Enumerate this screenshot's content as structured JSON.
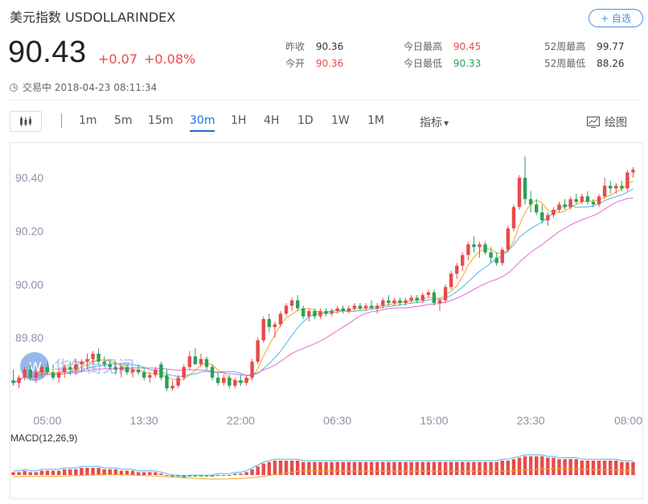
{
  "header": {
    "title": "美元指数 USDOLLARINDEX",
    "follow_label": "+ 自选",
    "price": "90.43",
    "change": "+0.07",
    "change_pct": "+0.08%",
    "status": "交易中 2018-04-23 08:11:34"
  },
  "stats": [
    {
      "label": "昨收",
      "value": "90.36",
      "color": "#333333"
    },
    {
      "label": "今开",
      "value": "90.36",
      "color": "#e84a4a"
    },
    {
      "label": "今日最高",
      "value": "90.45",
      "color": "#e84a4a"
    },
    {
      "label": "今日最低",
      "value": "90.33",
      "color": "#2aa05a"
    },
    {
      "label": "52周最高",
      "value": "99.77",
      "color": "#333333"
    },
    {
      "label": "52周最低",
      "value": "88.26",
      "color": "#333333"
    }
  ],
  "toolbar": {
    "timeframes": [
      "1m",
      "5m",
      "15m",
      "30m",
      "1H",
      "4H",
      "1D",
      "1W",
      "1M"
    ],
    "active": "30m",
    "indicator_label": "指标",
    "draw_label": "绘图"
  },
  "watermark": "华尔街见闻",
  "colors": {
    "up": "#e84a4a",
    "down": "#2aa05a",
    "ma1": "#f5a623",
    "ma2": "#4ab8e8",
    "ma3": "#e86ad0",
    "accent": "#1a73d9"
  },
  "chart_data": {
    "type": "candlestick",
    "title": "",
    "ylim": [
      89.55,
      90.5
    ],
    "yticks": [
      "90.40",
      "90.20",
      "90.00",
      "89.80"
    ],
    "ytick_values": [
      90.4,
      90.2,
      90.0,
      89.8
    ],
    "xticks": [
      "05:00",
      "13:30",
      "22:00",
      "06:30",
      "15:00",
      "23:30",
      "08:00"
    ],
    "xtick_index": [
      6,
      23,
      40,
      57,
      74,
      91,
      108
    ],
    "candles": [
      [
        89.64,
        89.68,
        89.62,
        89.63
      ],
      [
        89.63,
        89.66,
        89.61,
        89.65
      ],
      [
        89.65,
        89.69,
        89.64,
        89.68
      ],
      [
        89.68,
        89.7,
        89.64,
        89.65
      ],
      [
        89.65,
        89.68,
        89.63,
        89.67
      ],
      [
        89.67,
        89.7,
        89.65,
        89.69
      ],
      [
        89.69,
        89.71,
        89.66,
        89.67
      ],
      [
        89.67,
        89.7,
        89.64,
        89.65
      ],
      [
        89.65,
        89.69,
        89.63,
        89.67
      ],
      [
        89.67,
        89.7,
        89.65,
        89.69
      ],
      [
        89.69,
        89.71,
        89.66,
        89.68
      ],
      [
        89.68,
        89.72,
        89.66,
        89.7
      ],
      [
        89.7,
        89.72,
        89.67,
        89.71
      ],
      [
        89.71,
        89.74,
        89.68,
        89.72
      ],
      [
        89.72,
        89.75,
        89.7,
        89.74
      ],
      [
        89.74,
        89.76,
        89.7,
        89.71
      ],
      [
        89.71,
        89.73,
        89.69,
        89.7
      ],
      [
        89.7,
        89.72,
        89.68,
        89.69
      ],
      [
        89.69,
        89.71,
        89.66,
        89.68
      ],
      [
        89.68,
        89.7,
        89.65,
        89.69
      ],
      [
        89.69,
        89.7,
        89.66,
        89.67
      ],
      [
        89.67,
        89.69,
        89.65,
        89.68
      ],
      [
        89.68,
        89.7,
        89.66,
        89.67
      ],
      [
        89.67,
        89.69,
        89.64,
        89.65
      ],
      [
        89.65,
        89.67,
        89.63,
        89.66
      ],
      [
        89.66,
        89.69,
        89.65,
        89.68
      ],
      [
        89.7,
        89.71,
        89.64,
        89.65
      ],
      [
        89.66,
        89.68,
        89.6,
        89.61
      ],
      [
        89.61,
        89.64,
        89.6,
        89.62
      ],
      [
        89.62,
        89.66,
        89.61,
        89.65
      ],
      [
        89.65,
        89.7,
        89.64,
        89.69
      ],
      [
        89.69,
        89.75,
        89.68,
        89.73
      ],
      [
        89.73,
        89.76,
        89.7,
        89.7
      ],
      [
        89.7,
        89.74,
        89.69,
        89.72
      ],
      [
        89.72,
        89.73,
        89.68,
        89.69
      ],
      [
        89.69,
        89.7,
        89.64,
        89.65
      ],
      [
        89.65,
        89.67,
        89.62,
        89.63
      ],
      [
        89.63,
        89.66,
        89.62,
        89.65
      ],
      [
        89.65,
        89.66,
        89.61,
        89.62
      ],
      [
        89.62,
        89.65,
        89.61,
        89.64
      ],
      [
        89.64,
        89.66,
        89.62,
        89.63
      ],
      [
        89.63,
        89.66,
        89.62,
        89.65
      ],
      [
        89.65,
        89.72,
        89.64,
        89.71
      ],
      [
        89.71,
        89.8,
        89.7,
        89.79
      ],
      [
        89.79,
        89.88,
        89.78,
        89.87
      ],
      [
        89.87,
        89.89,
        89.82,
        89.84
      ],
      [
        89.84,
        89.86,
        89.8,
        89.85
      ],
      [
        89.85,
        89.9,
        89.84,
        89.89
      ],
      [
        89.89,
        89.93,
        89.88,
        89.92
      ],
      [
        89.92,
        89.95,
        89.9,
        89.94
      ],
      [
        89.94,
        89.96,
        89.9,
        89.91
      ],
      [
        89.91,
        89.92,
        89.87,
        89.88
      ],
      [
        89.88,
        89.91,
        89.86,
        89.9
      ],
      [
        89.9,
        89.91,
        89.87,
        89.88
      ],
      [
        89.88,
        89.91,
        89.87,
        89.9
      ],
      [
        89.9,
        89.91,
        89.88,
        89.89
      ],
      [
        89.89,
        89.91,
        89.88,
        89.9
      ],
      [
        89.9,
        89.92,
        89.89,
        89.91
      ],
      [
        89.91,
        89.92,
        89.89,
        89.9
      ],
      [
        89.9,
        89.92,
        89.89,
        89.91
      ],
      [
        89.91,
        89.93,
        89.9,
        89.92
      ],
      [
        89.92,
        89.93,
        89.9,
        89.91
      ],
      [
        89.91,
        89.93,
        89.9,
        89.92
      ],
      [
        89.92,
        89.94,
        89.91,
        89.91
      ],
      [
        89.91,
        89.93,
        89.89,
        89.92
      ],
      [
        89.92,
        89.95,
        89.91,
        89.94
      ],
      [
        89.94,
        89.96,
        89.92,
        89.93
      ],
      [
        89.93,
        89.95,
        89.92,
        89.94
      ],
      [
        89.94,
        89.95,
        89.92,
        89.93
      ],
      [
        89.93,
        89.95,
        89.92,
        89.94
      ],
      [
        89.94,
        89.96,
        89.93,
        89.95
      ],
      [
        89.95,
        89.96,
        89.93,
        89.94
      ],
      [
        89.94,
        89.97,
        89.93,
        89.96
      ],
      [
        89.96,
        89.98,
        89.95,
        89.97
      ],
      [
        89.97,
        89.98,
        89.92,
        89.93
      ],
      [
        89.93,
        89.95,
        89.9,
        89.94
      ],
      [
        89.94,
        90.0,
        89.93,
        89.99
      ],
      [
        89.99,
        90.05,
        89.98,
        90.04
      ],
      [
        90.04,
        90.08,
        90.02,
        90.07
      ],
      [
        90.07,
        90.12,
        90.05,
        90.11
      ],
      [
        90.11,
        90.16,
        90.09,
        90.15
      ],
      [
        90.15,
        90.18,
        90.12,
        90.14
      ],
      [
        90.14,
        90.16,
        90.1,
        90.15
      ],
      [
        90.15,
        90.16,
        90.11,
        90.12
      ],
      [
        90.12,
        90.14,
        90.08,
        90.1
      ],
      [
        90.1,
        90.12,
        90.07,
        90.08
      ],
      [
        90.08,
        90.14,
        90.07,
        90.13
      ],
      [
        90.13,
        90.22,
        90.12,
        90.21
      ],
      [
        90.21,
        90.3,
        90.2,
        90.29
      ],
      [
        90.29,
        90.41,
        90.28,
        90.4
      ],
      [
        90.4,
        90.48,
        90.3,
        90.32
      ],
      [
        90.32,
        90.35,
        90.27,
        90.3
      ],
      [
        90.3,
        90.32,
        90.26,
        90.27
      ],
      [
        90.27,
        90.3,
        90.23,
        90.24
      ],
      [
        90.24,
        90.27,
        90.22,
        90.26
      ],
      [
        90.26,
        90.29,
        90.25,
        90.28
      ],
      [
        90.28,
        90.31,
        90.27,
        90.3
      ],
      [
        90.3,
        90.32,
        90.28,
        90.29
      ],
      [
        90.29,
        90.33,
        90.28,
        90.32
      ],
      [
        90.32,
        90.34,
        90.3,
        90.31
      ],
      [
        90.31,
        90.34,
        90.3,
        90.33
      ],
      [
        90.33,
        90.35,
        90.3,
        90.31
      ],
      [
        90.31,
        90.32,
        90.29,
        90.3
      ],
      [
        90.3,
        90.34,
        90.29,
        90.33
      ],
      [
        90.33,
        90.4,
        90.32,
        90.37
      ],
      [
        90.37,
        90.39,
        90.34,
        90.36
      ],
      [
        90.36,
        90.38,
        90.34,
        90.37
      ],
      [
        90.37,
        90.39,
        90.35,
        90.36
      ],
      [
        90.36,
        90.43,
        90.35,
        90.42
      ],
      [
        90.42,
        90.44,
        90.4,
        90.43
      ]
    ],
    "macd_label": "MACD(12,26,9)",
    "macd_hist": [
      0.2,
      0.2,
      0.3,
      0.2,
      0.2,
      0.3,
      0.3,
      0.3,
      0.3,
      0.4,
      0.4,
      0.4,
      0.5,
      0.5,
      0.5,
      0.5,
      0.4,
      0.4,
      0.4,
      0.3,
      0.3,
      0.3,
      0.2,
      0.2,
      0.2,
      0.2,
      0.1,
      0.0,
      -0.1,
      -0.1,
      -0.2,
      -0.1,
      -0.1,
      -0.1,
      -0.1,
      -0.1,
      0.0,
      0.0,
      0.0,
      0.1,
      0.1,
      0.2,
      0.4,
      0.6,
      0.8,
      0.9,
      1.0,
      1.0,
      1.0,
      1.0,
      1.0,
      0.9,
      0.9,
      0.9,
      0.9,
      0.9,
      0.9,
      0.9,
      0.9,
      0.9,
      0.9,
      0.9,
      0.9,
      0.9,
      0.9,
      0.9,
      0.9,
      0.9,
      0.9,
      0.9,
      0.9,
      0.9,
      0.9,
      0.9,
      0.9,
      0.9,
      0.9,
      0.9,
      0.9,
      0.9,
      0.9,
      0.9,
      0.9,
      0.9,
      0.9,
      0.9,
      1.0,
      1.0,
      1.1,
      1.2,
      1.3,
      1.3,
      1.3,
      1.3,
      1.2,
      1.2,
      1.1,
      1.1,
      1.1,
      1.1,
      1.0,
      1.0,
      1.0,
      1.0,
      1.0,
      1.0,
      1.0,
      0.9,
      0.9,
      0.9
    ]
  }
}
